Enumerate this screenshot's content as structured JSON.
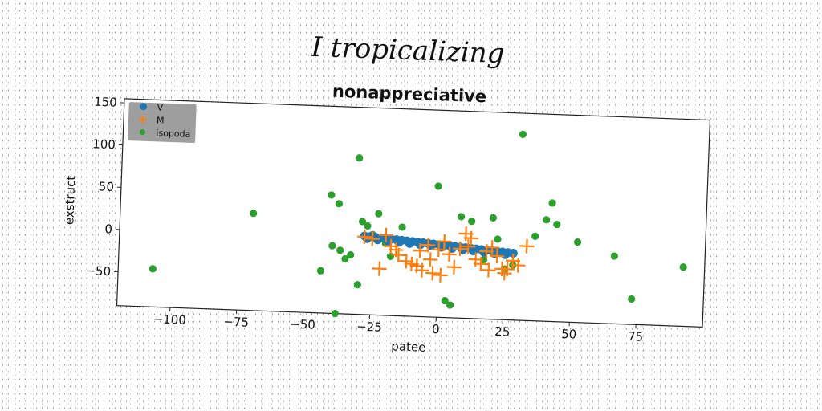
{
  "figure_title": "I tropicalizing",
  "chart_data": {
    "type": "scatter",
    "title": "nonappreciative",
    "xlabel": "patee",
    "ylabel": "exstruct",
    "xlim": [
      -120,
      100
    ],
    "ylim": [
      -90,
      155
    ],
    "xticks": [
      -100,
      -75,
      -50,
      -25,
      0,
      25,
      50,
      75
    ],
    "xtick_labels": [
      "−100",
      "−75",
      "−50",
      "−25",
      "0",
      "25",
      "50",
      "75"
    ],
    "yticks": [
      -50,
      0,
      50,
      100,
      150
    ],
    "ytick_labels": [
      "−50",
      "0",
      "50",
      "100",
      "150"
    ],
    "grid": false,
    "legend_position": "top-left",
    "series": [
      {
        "name": "V",
        "marker": "circle",
        "color": "#1f77b4",
        "x": [
          -28,
          -26,
          -24,
          -22,
          -20,
          -18,
          -16,
          -14,
          -12,
          -10,
          -8,
          -6,
          -4,
          -2,
          0,
          2,
          4,
          6,
          8,
          10,
          12,
          14,
          16,
          18,
          20,
          22,
          24,
          26,
          28,
          -27,
          -23,
          -19,
          -15,
          -11,
          -7,
          -3,
          1,
          5,
          9,
          13,
          17,
          21,
          25
        ],
        "y": [
          3,
          2.5,
          2,
          1.5,
          1,
          0.5,
          0,
          -0.5,
          -1,
          -1.5,
          -2,
          -2.5,
          -3,
          -3.5,
          -4,
          -4.5,
          -5,
          -5.5,
          -6,
          -6.5,
          -7,
          -7.5,
          -8,
          -8.5,
          -9,
          -9.5,
          -10,
          -10.5,
          -11,
          0,
          -1,
          -2,
          -3,
          -4,
          -5,
          -6,
          -7,
          -8,
          -9,
          -10,
          -11,
          -12,
          -13
        ]
      },
      {
        "name": "M",
        "marker": "plus",
        "color": "#ff7f0e",
        "x": [
          -28,
          -25,
          -20,
          -18,
          -15,
          -12,
          -10,
          -8,
          -6,
          -4,
          -2,
          0,
          2,
          4,
          6,
          8,
          10,
          12,
          14,
          16,
          18,
          20,
          22,
          24,
          26,
          28,
          30,
          33,
          -22,
          -16,
          -7,
          1,
          11,
          19,
          25,
          -3
        ],
        "y": [
          2,
          0,
          5,
          -8,
          -18,
          -25,
          -28,
          -30,
          -35,
          -5,
          -38,
          -10,
          0,
          -15,
          -30,
          -8,
          10,
          5,
          -20,
          -25,
          -10,
          -5,
          -15,
          -30,
          -30,
          -20,
          -25,
          -2,
          -35,
          -12,
          -12,
          -40,
          -5,
          -32,
          -35,
          -22
        ]
      },
      {
        "name": "isopoda",
        "marker": "circle",
        "color": "#2ca02c",
        "x": [
          -107,
          -70,
          -44,
          -41,
          -40,
          -38,
          -37,
          -35,
          -33,
          -31,
          -30,
          -29,
          -27,
          -25,
          -23,
          -20,
          -18,
          -14,
          3,
          5,
          8,
          12,
          17,
          20,
          22,
          25,
          28,
          36,
          40,
          42,
          44,
          52,
          66,
          73,
          92,
          -38,
          -1,
          30
        ],
        "y": [
          -45,
          25,
          -40,
          50,
          -10,
          40,
          -15,
          -25,
          -20,
          95,
          -55,
          20,
          15,
          5,
          30,
          -5,
          -20,
          15,
          -70,
          -75,
          30,
          25,
          -20,
          30,
          5,
          -30,
          -25,
          10,
          30,
          50,
          25,
          5,
          -10,
          -60,
          -20,
          -90,
          65,
          130
        ]
      }
    ]
  }
}
